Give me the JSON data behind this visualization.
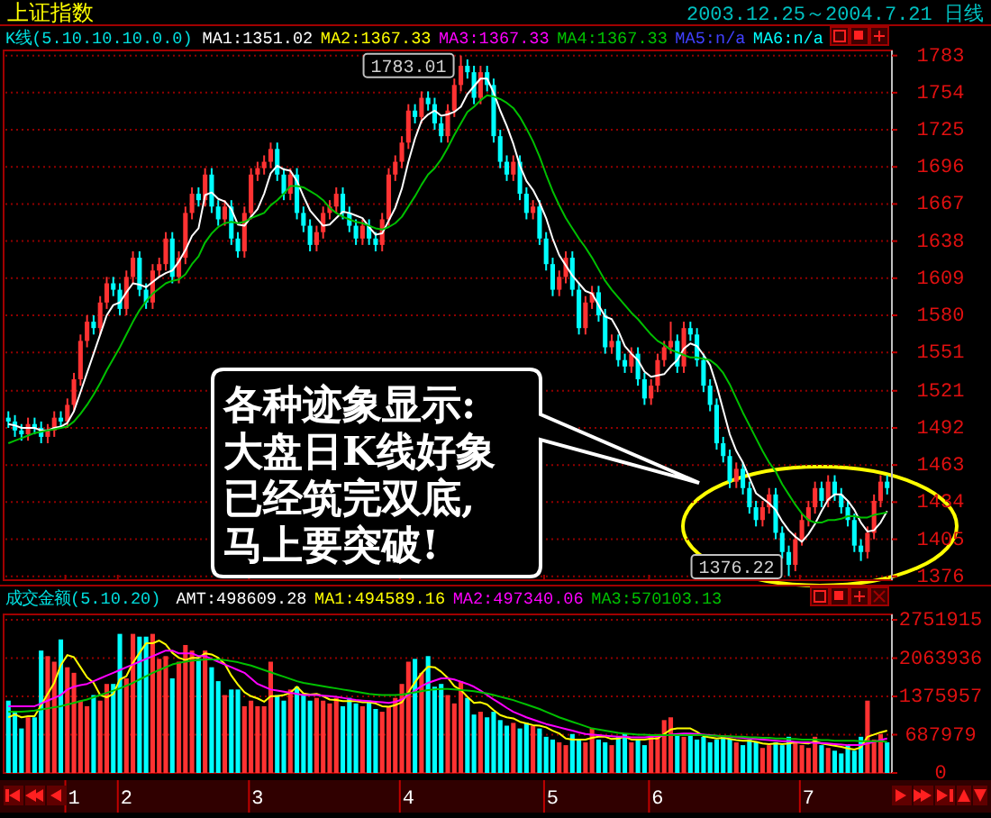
{
  "chart_data": [
    {
      "type": "candlestick",
      "title": "上证指数",
      "subtitle": "2003.12.25～2004.7.21 日线",
      "legend_title": "K线(5.10.10.10.0.0)",
      "legend": "top",
      "grid": "y",
      "tick_labels": "y",
      "categories": [
        null,
        null,
        null,
        null,
        null,
        null,
        null,
        null,
        null,
        null,
        "1",
        null,
        null,
        null,
        null,
        null,
        null,
        null,
        "2",
        null,
        null,
        null,
        null,
        null,
        null,
        null,
        null,
        null,
        null,
        null,
        null,
        null,
        null,
        null,
        null,
        null,
        null,
        null,
        "3",
        null,
        null,
        null,
        null,
        null,
        null,
        null,
        null,
        null,
        null,
        null,
        null,
        null,
        null,
        null,
        null,
        null,
        null,
        null,
        null,
        null,
        null,
        "4",
        null,
        null,
        null,
        null,
        null,
        null,
        null,
        null,
        null,
        null,
        null,
        null,
        null,
        null,
        null,
        null,
        null,
        null,
        null,
        null,
        null,
        "5",
        null,
        null,
        null,
        null,
        null,
        null,
        null,
        null,
        null,
        null,
        null,
        null,
        null,
        null,
        null,
        "6",
        null,
        null,
        null,
        null,
        null,
        null,
        null,
        null,
        null,
        null,
        null,
        null,
        null,
        null,
        null,
        null,
        null,
        null,
        null,
        null,
        null,
        null,
        "7",
        null,
        null,
        null,
        null,
        null,
        null,
        null,
        null,
        null,
        null,
        null,
        null
      ],
      "ohlc": [
        [
          1500,
          1505,
          1492,
          1497
        ],
        [
          1497,
          1502,
          1485,
          1490
        ],
        [
          1490,
          1495,
          1482,
          1487
        ],
        [
          1487,
          1500,
          1482,
          1495
        ],
        [
          1495,
          1500,
          1487,
          1492
        ],
        [
          1492,
          1497,
          1480,
          1485
        ],
        [
          1485,
          1495,
          1480,
          1490
        ],
        [
          1490,
          1505,
          1485,
          1500
        ],
        [
          1500,
          1505,
          1492,
          1497
        ],
        [
          1497,
          1515,
          1492,
          1510
        ],
        [
          1510,
          1535,
          1505,
          1530
        ],
        [
          1530,
          1565,
          1525,
          1560
        ],
        [
          1560,
          1580,
          1555,
          1575
        ],
        [
          1575,
          1580,
          1565,
          1570
        ],
        [
          1570,
          1595,
          1565,
          1590
        ],
        [
          1590,
          1610,
          1585,
          1605
        ],
        [
          1605,
          1610,
          1595,
          1600
        ],
        [
          1600,
          1605,
          1580,
          1585
        ],
        [
          1585,
          1615,
          1580,
          1610
        ],
        [
          1610,
          1630,
          1605,
          1625
        ],
        [
          1625,
          1630,
          1595,
          1600
        ],
        [
          1600,
          1605,
          1585,
          1590
        ],
        [
          1590,
          1620,
          1585,
          1615
        ],
        [
          1615,
          1625,
          1610,
          1620
        ],
        [
          1620,
          1645,
          1615,
          1640
        ],
        [
          1640,
          1645,
          1605,
          1610
        ],
        [
          1610,
          1630,
          1605,
          1625
        ],
        [
          1625,
          1665,
          1620,
          1660
        ],
        [
          1660,
          1680,
          1655,
          1675
        ],
        [
          1675,
          1680,
          1665,
          1670
        ],
        [
          1670,
          1695,
          1665,
          1690
        ],
        [
          1690,
          1695,
          1660,
          1665
        ],
        [
          1665,
          1670,
          1650,
          1655
        ],
        [
          1655,
          1670,
          1650,
          1665
        ],
        [
          1665,
          1670,
          1635,
          1640
        ],
        [
          1640,
          1645,
          1625,
          1630
        ],
        [
          1630,
          1665,
          1625,
          1660
        ],
        [
          1660,
          1695,
          1655,
          1690
        ],
        [
          1690,
          1700,
          1685,
          1695
        ],
        [
          1695,
          1705,
          1690,
          1700
        ],
        [
          1700,
          1715,
          1695,
          1710
        ],
        [
          1710,
          1715,
          1685,
          1690
        ],
        [
          1690,
          1695,
          1670,
          1675
        ],
        [
          1675,
          1695,
          1670,
          1690
        ],
        [
          1690,
          1695,
          1655,
          1660
        ],
        [
          1660,
          1665,
          1645,
          1650
        ],
        [
          1650,
          1655,
          1630,
          1635
        ],
        [
          1635,
          1650,
          1630,
          1645
        ],
        [
          1645,
          1665,
          1640,
          1660
        ],
        [
          1660,
          1670,
          1655,
          1665
        ],
        [
          1665,
          1680,
          1660,
          1675
        ],
        [
          1675,
          1680,
          1655,
          1660
        ],
        [
          1660,
          1665,
          1645,
          1650
        ],
        [
          1650,
          1655,
          1635,
          1640
        ],
        [
          1640,
          1655,
          1635,
          1650
        ],
        [
          1650,
          1655,
          1635,
          1640
        ],
        [
          1640,
          1645,
          1630,
          1635
        ],
        [
          1635,
          1660,
          1630,
          1655
        ],
        [
          1655,
          1695,
          1650,
          1690
        ],
        [
          1690,
          1705,
          1685,
          1700
        ],
        [
          1700,
          1720,
          1695,
          1715
        ],
        [
          1715,
          1745,
          1710,
          1740
        ],
        [
          1740,
          1745,
          1730,
          1735
        ],
        [
          1735,
          1755,
          1730,
          1750
        ],
        [
          1750,
          1755,
          1740,
          1745
        ],
        [
          1745,
          1750,
          1725,
          1730
        ],
        [
          1730,
          1735,
          1715,
          1720
        ],
        [
          1720,
          1745,
          1715,
          1740
        ],
        [
          1740,
          1765,
          1735,
          1760
        ],
        [
          1760,
          1783.01,
          1755,
          1775
        ],
        [
          1775,
          1780,
          1765,
          1770
        ],
        [
          1770,
          1775,
          1745,
          1750
        ],
        [
          1750,
          1775,
          1745,
          1770
        ],
        [
          1770,
          1775,
          1755,
          1760
        ],
        [
          1760,
          1765,
          1715,
          1720
        ],
        [
          1720,
          1725,
          1695,
          1700
        ],
        [
          1700,
          1705,
          1685,
          1690
        ],
        [
          1690,
          1705,
          1685,
          1700
        ],
        [
          1700,
          1705,
          1670,
          1675
        ],
        [
          1675,
          1680,
          1655,
          1660
        ],
        [
          1660,
          1670,
          1655,
          1665
        ],
        [
          1665,
          1670,
          1635,
          1640
        ],
        [
          1640,
          1645,
          1615,
          1620
        ],
        [
          1620,
          1625,
          1595,
          1600
        ],
        [
          1600,
          1615,
          1595,
          1610
        ],
        [
          1610,
          1630,
          1605,
          1625
        ],
        [
          1625,
          1630,
          1595,
          1600
        ],
        [
          1600,
          1605,
          1565,
          1570
        ],
        [
          1570,
          1595,
          1565,
          1590
        ],
        [
          1590,
          1603,
          1585,
          1598
        ],
        [
          1598,
          1603,
          1575,
          1580
        ],
        [
          1580,
          1585,
          1550,
          1555
        ],
        [
          1555,
          1565,
          1550,
          1560
        ],
        [
          1560,
          1565,
          1540,
          1545
        ],
        [
          1545,
          1550,
          1535,
          1540
        ],
        [
          1540,
          1555,
          1535,
          1550
        ],
        [
          1550,
          1555,
          1525,
          1530
        ],
        [
          1530,
          1535,
          1510,
          1515
        ],
        [
          1515,
          1530,
          1510,
          1525
        ],
        [
          1525,
          1550,
          1520,
          1545
        ],
        [
          1545,
          1560,
          1540,
          1555
        ],
        [
          1555,
          1575,
          1550,
          1560
        ],
        [
          1560,
          1565,
          1535,
          1540
        ],
        [
          1540,
          1575,
          1535,
          1570
        ],
        [
          1570,
          1575,
          1560,
          1565
        ],
        [
          1565,
          1570,
          1540,
          1545
        ],
        [
          1545,
          1550,
          1520,
          1525
        ],
        [
          1525,
          1530,
          1505,
          1510
        ],
        [
          1510,
          1515,
          1475,
          1480
        ],
        [
          1480,
          1485,
          1465,
          1470
        ],
        [
          1470,
          1475,
          1445,
          1450
        ],
        [
          1450,
          1465,
          1445,
          1460
        ],
        [
          1460,
          1465,
          1440,
          1445
        ],
        [
          1445,
          1450,
          1425,
          1430
        ],
        [
          1430,
          1435,
          1415,
          1420
        ],
        [
          1420,
          1435,
          1415,
          1430
        ],
        [
          1430,
          1445,
          1425,
          1440
        ],
        [
          1440,
          1445,
          1405,
          1410
        ],
        [
          1410,
          1415,
          1390,
          1395
        ],
        [
          1395,
          1400,
          1376.22,
          1385
        ],
        [
          1385,
          1410,
          1380,
          1405
        ],
        [
          1405,
          1425,
          1400,
          1420
        ],
        [
          1420,
          1435,
          1415,
          1430
        ],
        [
          1430,
          1450,
          1425,
          1445
        ],
        [
          1445,
          1450,
          1430,
          1435
        ],
        [
          1435,
          1455,
          1430,
          1450
        ],
        [
          1450,
          1455,
          1435,
          1440
        ],
        [
          1440,
          1445,
          1425,
          1430
        ],
        [
          1430,
          1435,
          1415,
          1420
        ],
        [
          1420,
          1425,
          1395,
          1400
        ],
        [
          1400,
          1405,
          1388,
          1395
        ],
        [
          1395,
          1415,
          1390,
          1410
        ],
        [
          1410,
          1440,
          1405,
          1435
        ],
        [
          1435,
          1455,
          1430,
          1450
        ],
        [
          1450,
          1455,
          1440,
          1445
        ]
      ],
      "colors": [
        "#00ffff",
        "#00ffff",
        "#00ffff",
        "#ff3232",
        "#00ffff",
        "#00ffff",
        "#ff3232",
        "#ff3232",
        "#00ffff",
        "#ff3232",
        "#ff3232",
        "#ff3232",
        "#ff3232",
        "#00ffff",
        "#ff3232",
        "#ff3232",
        "#00ffff",
        "#00ffff",
        "#ff3232",
        "#ff3232",
        "#00ffff",
        "#00ffff",
        "#ff3232",
        "#ff3232",
        "#ff3232",
        "#00ffff",
        "#ff3232",
        "#ff3232",
        "#ff3232",
        "#00ffff",
        "#ff3232",
        "#00ffff",
        "#00ffff",
        "#ff3232",
        "#00ffff",
        "#00ffff",
        "#ff3232",
        "#ff3232",
        "#ff3232",
        "#ff3232",
        "#ff3232",
        "#00ffff",
        "#00ffff",
        "#ff3232",
        "#00ffff",
        "#00ffff",
        "#00ffff",
        "#ff3232",
        "#ff3232",
        "#ff3232",
        "#ff3232",
        "#00ffff",
        "#00ffff",
        "#00ffff",
        "#ff3232",
        "#00ffff",
        "#00ffff",
        "#ff3232",
        "#ff3232",
        "#ff3232",
        "#ff3232",
        "#ff3232",
        "#00ffff",
        "#ff3232",
        "#00ffff",
        "#00ffff",
        "#00ffff",
        "#ff3232",
        "#ff3232",
        "#ff3232",
        "#00ffff",
        "#00ffff",
        "#ff3232",
        "#00ffff",
        "#00ffff",
        "#00ffff",
        "#00ffff",
        "#ff3232",
        "#00ffff",
        "#00ffff",
        "#ff3232",
        "#00ffff",
        "#00ffff",
        "#00ffff",
        "#ff3232",
        "#ff3232",
        "#00ffff",
        "#00ffff",
        "#ff3232",
        "#ff3232",
        "#00ffff",
        "#00ffff",
        "#ff3232",
        "#00ffff",
        "#00ffff",
        "#ff3232",
        "#00ffff",
        "#00ffff",
        "#ff3232",
        "#ff3232",
        "#ff3232",
        "#ff3232",
        "#00ffff",
        "#ff3232",
        "#00ffff",
        "#00ffff",
        "#00ffff",
        "#00ffff",
        "#00ffff",
        "#00ffff",
        "#00ffff",
        "#ff3232",
        "#00ffff",
        "#00ffff",
        "#00ffff",
        "#ff3232",
        "#ff3232",
        "#00ffff",
        "#00ffff",
        "#00ffff",
        "#ff3232",
        "#ff3232",
        "#ff3232",
        "#ff3232",
        "#00ffff",
        "#ff3232",
        "#00ffff",
        "#00ffff",
        "#00ffff",
        "#00ffff",
        "#00ffff",
        "#ff3232",
        "#ff3232",
        "#ff3232",
        "#00ffff"
      ],
      "series": [
        {
          "name": "MA1:1351.02",
          "type": "line",
          "color": "#ffffff",
          "values": [
            1495,
            1494,
            1492,
            1492,
            1492,
            1490,
            1490,
            1492,
            1493,
            1496,
            1505,
            1520,
            1535,
            1550,
            1565,
            1580,
            1588,
            1590,
            1598,
            1605,
            1604,
            1602,
            1606,
            1610,
            1613,
            1615,
            1622,
            1631,
            1642,
            1648,
            1674,
            1676,
            1671,
            1669,
            1663,
            1651,
            1650,
            1657,
            1663,
            1675,
            1691,
            1697,
            1694,
            1693,
            1685,
            1673,
            1662,
            1656,
            1650,
            1651,
            1656,
            1661,
            1660,
            1658,
            1656,
            1649,
            1643,
            1644,
            1654,
            1664,
            1679,
            1700,
            1718,
            1732,
            1737,
            1740,
            1736,
            1737,
            1739,
            1743,
            1753,
            1759,
            1765,
            1765,
            1754,
            1740,
            1728,
            1714,
            1697,
            1685,
            1678,
            1668,
            1656,
            1640,
            1627,
            1619,
            1611,
            1605,
            1599,
            1597,
            1588,
            1579,
            1577,
            1568,
            1556,
            1550,
            1545,
            1536,
            1532,
            1533,
            1534,
            1540,
            1545,
            1554,
            1558,
            1556,
            1549,
            1541,
            1525,
            1506,
            1487,
            1474,
            1465,
            1453,
            1441,
            1437,
            1433,
            1428,
            1419,
            1412,
            1407,
            1403,
            1409,
            1417,
            1427,
            1436,
            1440,
            1440,
            1435,
            1428,
            1418,
            1411,
            1412,
            1418,
            1427
          ]
        },
        {
          "name": "MA4:1367.33",
          "type": "line",
          "color": "#00c000",
          "values": [
            1480,
            1482,
            1484,
            1486,
            1488,
            1489,
            1490,
            1491,
            1492,
            1493,
            1497,
            1503,
            1510,
            1518,
            1527,
            1537,
            1546,
            1555,
            1565,
            1575,
            1584,
            1591,
            1597,
            1601,
            1605,
            1607,
            1608,
            1612,
            1620,
            1626,
            1637,
            1644,
            1649,
            1652,
            1653,
            1652,
            1653,
            1656,
            1658,
            1660,
            1666,
            1670,
            1675,
            1681,
            1681,
            1680,
            1677,
            1674,
            1670,
            1664,
            1660,
            1657,
            1655,
            1653,
            1652,
            1650,
            1648,
            1647,
            1649,
            1652,
            1657,
            1665,
            1673,
            1682,
            1690,
            1695,
            1702,
            1711,
            1721,
            1730,
            1739,
            1743,
            1748,
            1752,
            1751,
            1749,
            1746,
            1742,
            1735,
            1726,
            1716,
            1704,
            1690,
            1677,
            1666,
            1656,
            1648,
            1640,
            1633,
            1625,
            1616,
            1607,
            1600,
            1594,
            1588,
            1582,
            1577,
            1571,
            1565,
            1560,
            1557,
            1553,
            1551,
            1549,
            1547,
            1547,
            1546,
            1545,
            1541,
            1535,
            1526,
            1515,
            1504,
            1494,
            1484,
            1474,
            1465,
            1458,
            1448,
            1440,
            1432,
            1425,
            1420,
            1418,
            1418,
            1420,
            1420,
            1421,
            1423,
            1423,
            1422,
            1422,
            1424,
            1425,
            1426
          ]
        }
      ],
      "ylim": [
        1373,
        1787
      ],
      "yticks": [
        1376,
        1405,
        1434,
        1463,
        1492,
        1521,
        1551,
        1580,
        1609,
        1638,
        1667,
        1696,
        1725,
        1754,
        1783
      ],
      "annotations": [
        "1783.01",
        "1376.22",
        "MA2:1367.33",
        "MA3:1367.33",
        "MA5:n/a",
        "MA6:n/a",
        "各种迹象显示:大盘日K线好象已经筑完双底,马上要突破!"
      ]
    },
    {
      "type": "bar",
      "legend_title": "成交金额(5.10.20)",
      "legend": "top",
      "grid": "y",
      "categories": [
        null,
        null,
        null,
        null,
        null,
        null,
        null,
        null,
        null,
        null,
        "1",
        null,
        null,
        null,
        null,
        null,
        null,
        null,
        "2",
        null,
        null,
        null,
        null,
        null,
        null,
        null,
        null,
        null,
        null,
        null,
        null,
        null,
        null,
        null,
        null,
        null,
        null,
        null,
        "3",
        null,
        null,
        null,
        null,
        null,
        null,
        null,
        null,
        null,
        null,
        null,
        null,
        null,
        null,
        null,
        null,
        null,
        null,
        null,
        null,
        null,
        null,
        "4",
        null,
        null,
        null,
        null,
        null,
        null,
        null,
        null,
        null,
        null,
        null,
        null,
        null,
        null,
        null,
        null,
        null,
        null,
        null,
        null,
        null,
        "5",
        null,
        null,
        null,
        null,
        null,
        null,
        null,
        null,
        null,
        null,
        null,
        null,
        null,
        null,
        null,
        "6",
        null,
        null,
        null,
        null,
        null,
        null,
        null,
        null,
        null,
        null,
        null,
        null,
        null,
        null,
        null,
        null,
        null,
        null,
        null,
        null,
        null,
        null,
        "7",
        null,
        null,
        null,
        null,
        null,
        null,
        null,
        null,
        null,
        null,
        null,
        null
      ],
      "series": [
        {
          "name": "AMT:498609.28",
          "type": "bar",
          "values": [
            1300000,
            1100000,
            800000,
            1000000,
            1000000,
            2200000,
            2100000,
            2000000,
            2400000,
            1900000,
            1800000,
            1300000,
            1200000,
            1400000,
            1300000,
            1600000,
            1600000,
            2500000,
            1700000,
            2500000,
            2450000,
            2450000,
            2500000,
            2050000,
            2100000,
            1700000,
            2000000,
            2300000,
            2200000,
            2050000,
            2200000,
            1900000,
            1650000,
            1400000,
            1500000,
            1500000,
            1200000,
            1300000,
            1200000,
            1200000,
            2000000,
            1400000,
            1300000,
            1500000,
            1550000,
            1400000,
            1300000,
            1350000,
            1300000,
            1250000,
            1350000,
            1200000,
            1350000,
            1250000,
            1200000,
            1300000,
            1150000,
            1100000,
            1200000,
            1350000,
            1600000,
            2000000,
            2050000,
            1800000,
            2100000,
            1550000,
            1600000,
            1400000,
            1250000,
            1650000,
            1350000,
            1050000,
            1100000,
            1000000,
            1100000,
            950000,
            850000,
            900000,
            800000,
            900000,
            850000,
            800000,
            650000,
            600000,
            550000,
            500000,
            700000,
            600000,
            550000,
            800000,
            600000,
            550000,
            500000,
            650000,
            700000,
            550000,
            600000,
            500000,
            650000,
            700000,
            950000,
            1000000,
            700000,
            650000,
            700000,
            600000,
            650000,
            550000,
            600000,
            650000,
            600000,
            550000,
            500000,
            600000,
            550000,
            450000,
            500000,
            550000,
            500000,
            650000,
            550000,
            500000,
            450000,
            650000,
            500000,
            450000,
            400000,
            350000,
            500000,
            400000,
            650000,
            1300000,
            600000,
            700000,
            550000
          ],
          "colors": [
            "#00ffff",
            "#00ffff",
            "#00ffff",
            "#ff3232",
            "#00ffff",
            "#00ffff",
            "#ff3232",
            "#ff3232",
            "#00ffff",
            "#ff3232",
            "#ff3232",
            "#ff3232",
            "#ff3232",
            "#00ffff",
            "#ff3232",
            "#ff3232",
            "#00ffff",
            "#00ffff",
            "#ff3232",
            "#ff3232",
            "#00ffff",
            "#00ffff",
            "#ff3232",
            "#ff3232",
            "#ff3232",
            "#00ffff",
            "#ff3232",
            "#ff3232",
            "#ff3232",
            "#00ffff",
            "#ff3232",
            "#00ffff",
            "#00ffff",
            "#ff3232",
            "#00ffff",
            "#00ffff",
            "#ff3232",
            "#ff3232",
            "#ff3232",
            "#ff3232",
            "#ff3232",
            "#00ffff",
            "#00ffff",
            "#ff3232",
            "#00ffff",
            "#00ffff",
            "#00ffff",
            "#ff3232",
            "#ff3232",
            "#ff3232",
            "#ff3232",
            "#00ffff",
            "#00ffff",
            "#00ffff",
            "#ff3232",
            "#00ffff",
            "#00ffff",
            "#ff3232",
            "#ff3232",
            "#ff3232",
            "#ff3232",
            "#ff3232",
            "#00ffff",
            "#ff3232",
            "#00ffff",
            "#00ffff",
            "#00ffff",
            "#ff3232",
            "#ff3232",
            "#ff3232",
            "#00ffff",
            "#00ffff",
            "#ff3232",
            "#00ffff",
            "#00ffff",
            "#00ffff",
            "#00ffff",
            "#ff3232",
            "#00ffff",
            "#00ffff",
            "#ff3232",
            "#00ffff",
            "#00ffff",
            "#00ffff",
            "#ff3232",
            "#ff3232",
            "#00ffff",
            "#00ffff",
            "#ff3232",
            "#ff3232",
            "#00ffff",
            "#00ffff",
            "#ff3232",
            "#00ffff",
            "#00ffff",
            "#ff3232",
            "#00ffff",
            "#00ffff",
            "#ff3232",
            "#ff3232",
            "#ff3232",
            "#ff3232",
            "#00ffff",
            "#ff3232",
            "#00ffff",
            "#00ffff",
            "#00ffff",
            "#00ffff",
            "#00ffff",
            "#00ffff",
            "#00ffff",
            "#ff3232",
            "#00ffff",
            "#00ffff",
            "#00ffff",
            "#ff3232",
            "#ff3232",
            "#00ffff",
            "#00ffff",
            "#00ffff",
            "#ff3232",
            "#ff3232",
            "#ff3232",
            "#ff3232",
            "#00ffff",
            "#ff3232",
            "#00ffff",
            "#00ffff",
            "#00ffff",
            "#00ffff",
            "#00ffff",
            "#ff3232",
            "#ff3232",
            "#ff3232",
            "#00ffff"
          ]
        },
        {
          "name": "MA1:494589.16",
          "type": "line",
          "color": "#ffff00",
          "values": [
            1000000,
            1050000,
            1000000,
            1020000,
            1020000,
            1220000,
            1420000,
            1620000,
            1940000,
            2120000,
            2080000,
            1900000,
            1720000,
            1620000,
            1400000,
            1360000,
            1420000,
            1680000,
            1740000,
            1980000,
            2160000,
            2330000,
            2330000,
            2380000,
            2310000,
            2160000,
            2070000,
            2030000,
            2070000,
            2070000,
            2150000,
            2130000,
            2070000,
            1960000,
            1750000,
            1590000,
            1450000,
            1380000,
            1340000,
            1280000,
            1380000,
            1380000,
            1400000,
            1440000,
            1550000,
            1430000,
            1410000,
            1420000,
            1380000,
            1320000,
            1310000,
            1290000,
            1290000,
            1290000,
            1270000,
            1270000,
            1250000,
            1200000,
            1190000,
            1220000,
            1270000,
            1450000,
            1630000,
            1790000,
            1910000,
            1900000,
            1820000,
            1710000,
            1560000,
            1490000,
            1370000,
            1260000,
            1270000,
            1230000,
            1130000,
            1040000,
            1000000,
            980000,
            920000,
            890000,
            860000,
            850000,
            820000,
            760000,
            710000,
            620000,
            600000,
            600000,
            600000,
            630000,
            650000,
            650000,
            610000,
            620000,
            650000,
            600000,
            600000,
            600000,
            620000,
            620000,
            700000,
            780000,
            800000,
            800000,
            800000,
            740000,
            660000,
            640000,
            620000,
            630000,
            610000,
            590000,
            580000,
            580000,
            560000,
            530000,
            520000,
            530000,
            520000,
            530000,
            550000,
            540000,
            530000,
            570000,
            530000,
            510000,
            490000,
            470000,
            440000,
            420000,
            460000,
            650000,
            690000,
            730000,
            760000
          ]
        },
        {
          "name": "MA2:497340.06",
          "type": "line",
          "color": "#ff00ff",
          "values": [
            1200000,
            1200000,
            1200000,
            1200000,
            1200000,
            1250000,
            1300000,
            1350000,
            1400000,
            1500000,
            1550000,
            1580000,
            1600000,
            1650000,
            1700000,
            1750000,
            1800000,
            1850000,
            1900000,
            1950000,
            2000000,
            2050000,
            2100000,
            2150000,
            2200000,
            2200000,
            2150000,
            2150000,
            2150000,
            2100000,
            2100000,
            2050000,
            2000000,
            1950000,
            1900000,
            1850000,
            1800000,
            1700000,
            1600000,
            1550000,
            1500000,
            1480000,
            1460000,
            1440000,
            1420000,
            1400000,
            1400000,
            1400000,
            1390000,
            1380000,
            1370000,
            1350000,
            1330000,
            1310000,
            1300000,
            1290000,
            1280000,
            1270000,
            1260000,
            1280000,
            1320000,
            1400000,
            1480000,
            1560000,
            1620000,
            1660000,
            1700000,
            1700000,
            1680000,
            1640000,
            1600000,
            1550000,
            1480000,
            1400000,
            1320000,
            1250000,
            1170000,
            1100000,
            1050000,
            1000000,
            960000,
            920000,
            880000,
            850000,
            820000,
            790000,
            760000,
            730000,
            700000,
            690000,
            680000,
            670000,
            660000,
            650000,
            650000,
            640000,
            640000,
            640000,
            650000,
            660000,
            670000,
            690000,
            700000,
            710000,
            710000,
            700000,
            690000,
            680000,
            670000,
            660000,
            650000,
            640000,
            630000,
            620000,
            610000,
            600000,
            590000,
            580000,
            570000,
            570000,
            560000,
            550000,
            550000,
            540000,
            540000,
            530000,
            520000,
            510000,
            500000,
            500000,
            500000,
            530000,
            560000,
            590000,
            620000
          ]
        },
        {
          "name": "MA3:570103.13",
          "type": "line",
          "color": "#00c000",
          "values": [
            1100000,
            1100000,
            1100000,
            1110000,
            1120000,
            1140000,
            1160000,
            1180000,
            1200000,
            1230000,
            1260000,
            1290000,
            1320000,
            1360000,
            1400000,
            1440000,
            1480000,
            1520000,
            1570000,
            1620000,
            1680000,
            1740000,
            1800000,
            1850000,
            1900000,
            1950000,
            1980000,
            2000000,
            2020000,
            2030000,
            2040000,
            2040000,
            2040000,
            2030000,
            2010000,
            1990000,
            1960000,
            1930000,
            1890000,
            1850000,
            1810000,
            1770000,
            1730000,
            1690000,
            1650000,
            1620000,
            1600000,
            1580000,
            1560000,
            1540000,
            1520000,
            1500000,
            1480000,
            1460000,
            1440000,
            1420000,
            1410000,
            1400000,
            1400000,
            1400000,
            1410000,
            1430000,
            1450000,
            1470000,
            1490000,
            1500000,
            1510000,
            1510000,
            1500000,
            1490000,
            1480000,
            1470000,
            1450000,
            1430000,
            1400000,
            1370000,
            1340000,
            1310000,
            1270000,
            1230000,
            1190000,
            1150000,
            1100000,
            1050000,
            1000000,
            960000,
            920000,
            880000,
            840000,
            800000,
            780000,
            760000,
            740000,
            720000,
            710000,
            700000,
            690000,
            690000,
            680000,
            680000,
            680000,
            680000,
            680000,
            680000,
            680000,
            680000,
            680000,
            670000,
            670000,
            660000,
            660000,
            650000,
            650000,
            640000,
            640000,
            630000,
            630000,
            620000,
            620000,
            610000,
            610000,
            600000,
            600000,
            600000,
            590000,
            590000,
            580000,
            580000,
            580000,
            580000,
            570000,
            570000,
            570000,
            570000,
            560000
          ]
        }
      ],
      "ylim": [
        0,
        2850000
      ],
      "yticks": [
        0,
        687979,
        1375957,
        2063936,
        2751915
      ]
    }
  ]
}
